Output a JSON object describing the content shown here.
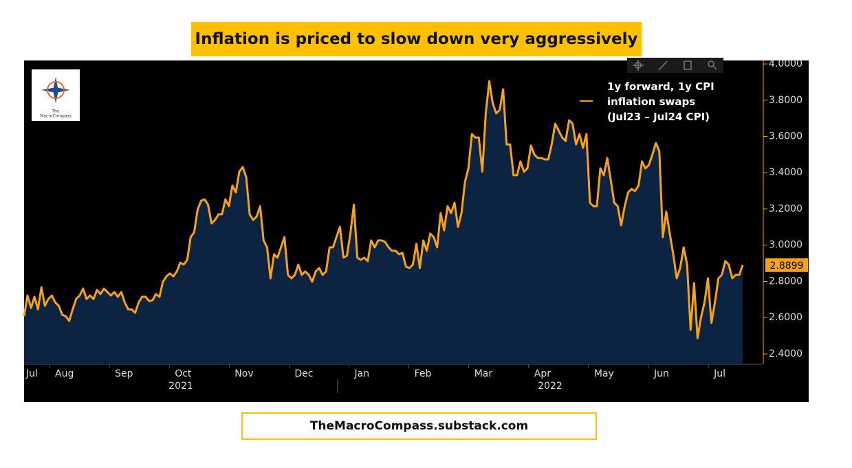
{
  "chart_data": {
    "type": "line",
    "title": "Inflation is priced to slow down very aggressively",
    "footer": "TheMacroCompass.substack.com",
    "logo_text": [
      "The",
      "MacroCompass"
    ],
    "month_labels": [
      "Jul",
      "Aug",
      "Sep",
      "Oct",
      "Nov",
      "Dec",
      "Jan",
      "Feb",
      "Mar",
      "Apr",
      "May",
      "Jun",
      "Jul"
    ],
    "year_labels": [
      "2021",
      "2022"
    ],
    "ylim": [
      2.343,
      4.019
    ],
    "yticks": [
      {
        "value": 2.4,
        "label": "2.4000"
      },
      {
        "value": 2.6,
        "label": "2.6000"
      },
      {
        "value": 2.8,
        "label": "2.8000"
      },
      {
        "value": 3.0,
        "label": "3.0000"
      },
      {
        "value": 3.2,
        "label": "3.2000"
      },
      {
        "value": 3.4,
        "label": "3.4000"
      },
      {
        "value": 3.6,
        "label": "3.6000"
      },
      {
        "value": 3.8,
        "label": "3.8000"
      },
      {
        "value": 4.0,
        "label": "4.0000"
      }
    ],
    "series": [
      {
        "name": "1y forward, 1y CPI inflation swaps (Jul23 – Jul24 CPI)",
        "color": "#f7a21b",
        "values": [
          2.608,
          2.722,
          2.654,
          2.715,
          2.646,
          2.768,
          2.665,
          2.703,
          2.722,
          2.684,
          2.665,
          2.616,
          2.608,
          2.582,
          2.646,
          2.703,
          2.722,
          2.76,
          2.703,
          2.722,
          2.703,
          2.753,
          2.73,
          2.76,
          2.741,
          2.722,
          2.741,
          2.715,
          2.741,
          2.684,
          2.646,
          2.646,
          2.627,
          2.684,
          2.715,
          2.715,
          2.692,
          2.696,
          2.73,
          2.715,
          2.798,
          2.828,
          2.844,
          2.828,
          2.855,
          2.904,
          2.893,
          2.919,
          3.045,
          3.071,
          3.196,
          3.245,
          3.253,
          3.223,
          3.12,
          3.139,
          3.17,
          3.17,
          3.253,
          3.215,
          3.329,
          3.291,
          3.405,
          3.431,
          3.374,
          3.17,
          3.139,
          3.158,
          3.215,
          3.026,
          2.988,
          2.817,
          2.95,
          2.931,
          2.988,
          3.045,
          2.836,
          2.817,
          2.836,
          2.893,
          2.836,
          2.855,
          2.836,
          2.798,
          2.855,
          2.874,
          2.836,
          2.855,
          2.988,
          2.988,
          3.045,
          3.101,
          2.931,
          2.942,
          3.064,
          3.223,
          2.931,
          2.919,
          2.931,
          2.912,
          3.026,
          2.988,
          3.026,
          3.026,
          3.018,
          2.988,
          2.969,
          2.969,
          2.95,
          2.957,
          2.882,
          2.874,
          2.893,
          3.007,
          2.874,
          3.026,
          2.969,
          3.064,
          3.045,
          2.988,
          3.177,
          3.082,
          3.215,
          3.177,
          3.234,
          3.101,
          3.177,
          3.348,
          3.424,
          3.613,
          3.594,
          3.594,
          3.405,
          3.727,
          3.905,
          3.784,
          3.727,
          3.746,
          3.86,
          3.556,
          3.556,
          3.386,
          3.386,
          3.462,
          3.405,
          3.424,
          3.549,
          3.5,
          3.481,
          3.481,
          3.473,
          3.473,
          3.556,
          3.67,
          3.632,
          3.594,
          3.575,
          3.689,
          3.67,
          3.556,
          3.613,
          3.537,
          3.613,
          3.234,
          3.215,
          3.215,
          3.424,
          3.386,
          3.481,
          3.359,
          3.234,
          3.215,
          3.109,
          3.215,
          3.291,
          3.31,
          3.299,
          3.329,
          3.462,
          3.424,
          3.443,
          3.5,
          3.564,
          3.518,
          3.045,
          3.185,
          3.064,
          2.95,
          2.817,
          2.874,
          2.988,
          2.893,
          2.533,
          2.791,
          2.487,
          2.601,
          2.684,
          2.817,
          2.571,
          2.684,
          2.817,
          2.836,
          2.912,
          2.893,
          2.817,
          2.836,
          2.836,
          2.8899
        ]
      }
    ],
    "grid": false
  }
}
